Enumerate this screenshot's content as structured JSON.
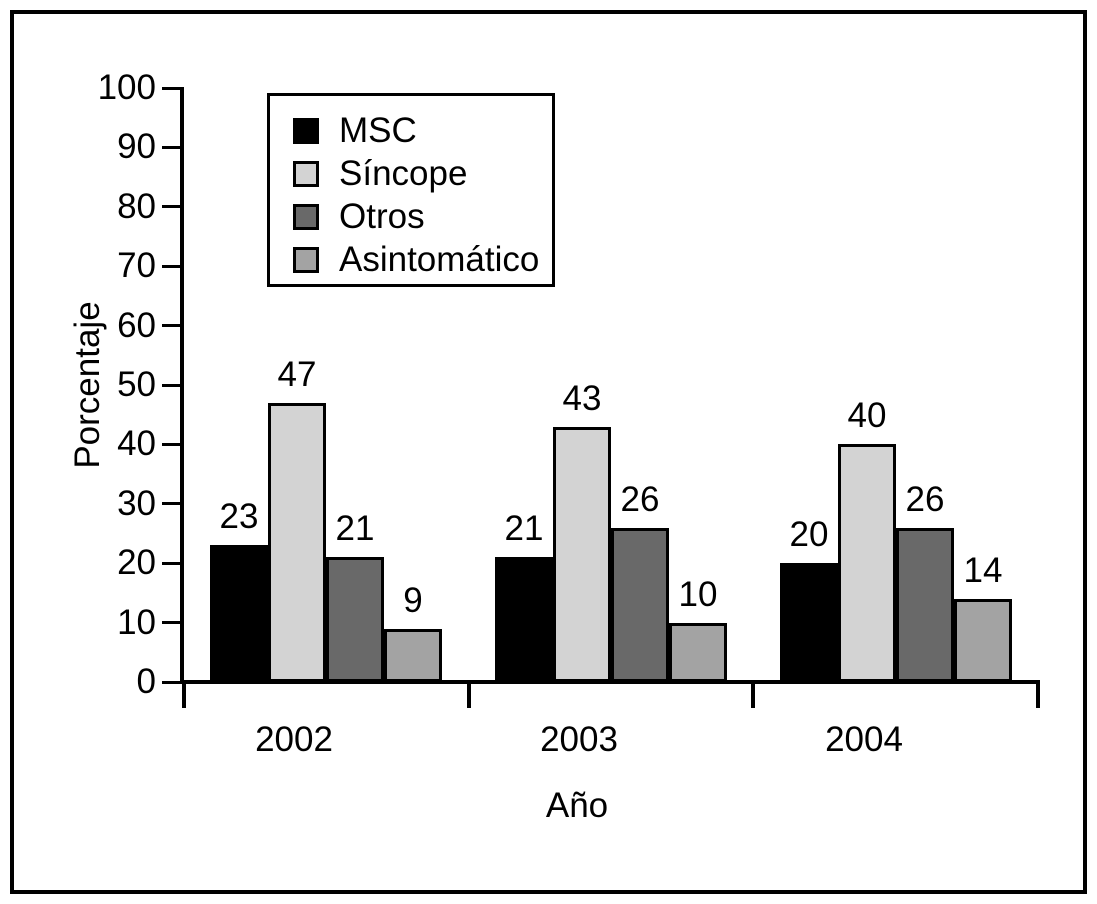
{
  "chart_data": {
    "type": "bar",
    "title": "",
    "categories": [
      "2002",
      "2003",
      "2004"
    ],
    "series": [
      {
        "name": "MSC",
        "color": "#000000",
        "values": [
          23,
          21,
          20
        ]
      },
      {
        "name": "Síncope",
        "color": "#d3d3d3",
        "values": [
          47,
          43,
          40
        ]
      },
      {
        "name": "Otros",
        "color": "#696969",
        "values": [
          21,
          26,
          26
        ]
      },
      {
        "name": "Asintomático",
        "color": "#a3a3a3",
        "values": [
          9,
          10,
          14
        ]
      }
    ],
    "bar_labels_shown": true,
    "xlabel": "Año",
    "ylabel": "Porcentaje",
    "ylim": [
      0,
      100
    ],
    "ytick_step": 10,
    "grid": false,
    "legend_position": "upper-left-inside",
    "axis_color": "#000000",
    "background_color": "#ffffff"
  }
}
